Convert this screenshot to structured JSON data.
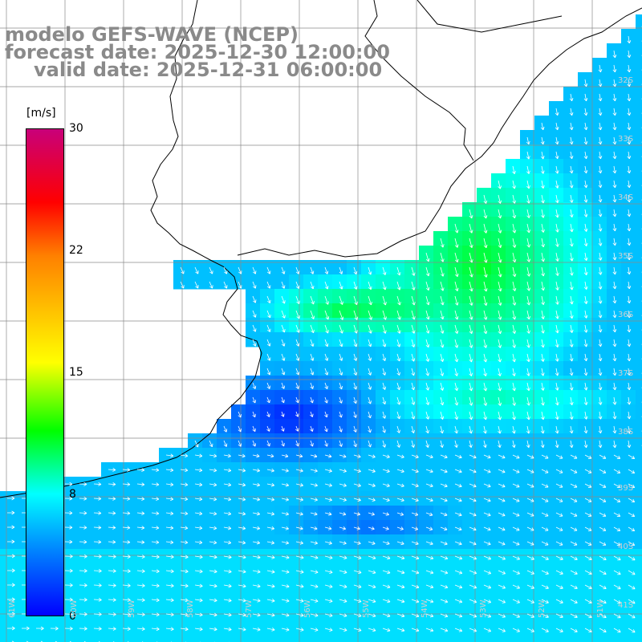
{
  "title": {
    "line1": "modelo GEFS-WAVE (NCEP)",
    "line2": "forecast date: 2025-12-30 12:00:00",
    "line3": "valid date: 2025-12-31 06:00:00"
  },
  "legend": {
    "unit": "[m/s]",
    "ticks": [
      "30",
      "22",
      "15",
      "8",
      "0"
    ],
    "colors": [
      "#c8007a",
      "#ff0000",
      "#ff8000",
      "#ffff00",
      "#00ff00",
      "#00ffff",
      "#0080ff",
      "#0000ff"
    ]
  },
  "lat_labels": [
    "32S",
    "33S",
    "34S",
    "35S",
    "36S",
    "37S",
    "38S",
    "39S",
    "40S",
    "41S"
  ],
  "lon_labels": [
    "61W",
    "60W",
    "59W",
    "58W",
    "57W",
    "56W",
    "55W",
    "54W",
    "53W",
    "52W",
    "51W"
  ]
}
